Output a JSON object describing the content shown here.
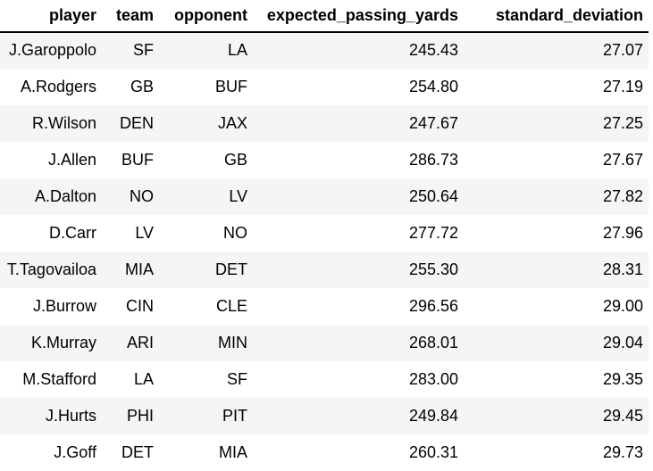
{
  "chart_data": {
    "type": "table",
    "columns": [
      "player",
      "team",
      "opponent",
      "expected_passing_yards",
      "standard_deviation"
    ],
    "rows": [
      [
        "J.Garoppolo",
        "SF",
        "LA",
        "245.43",
        "27.07"
      ],
      [
        "A.Rodgers",
        "GB",
        "BUF",
        "254.80",
        "27.19"
      ],
      [
        "R.Wilson",
        "DEN",
        "JAX",
        "247.67",
        "27.25"
      ],
      [
        "J.Allen",
        "BUF",
        "GB",
        "286.73",
        "27.67"
      ],
      [
        "A.Dalton",
        "NO",
        "LV",
        "250.64",
        "27.82"
      ],
      [
        "D.Carr",
        "LV",
        "NO",
        "277.72",
        "27.96"
      ],
      [
        "T.Tagovailoa",
        "MIA",
        "DET",
        "255.30",
        "28.31"
      ],
      [
        "J.Burrow",
        "CIN",
        "CLE",
        "296.56",
        "29.00"
      ],
      [
        "K.Murray",
        "ARI",
        "MIN",
        "268.01",
        "29.04"
      ],
      [
        "M.Stafford",
        "LA",
        "SF",
        "283.00",
        "29.35"
      ],
      [
        "J.Hurts",
        "PHI",
        "PIT",
        "249.84",
        "29.45"
      ],
      [
        "J.Goff",
        "DET",
        "MIA",
        "260.31",
        "29.73"
      ]
    ],
    "layout": {
      "alignment": "right",
      "grid": "off",
      "row_stripe_odd_color": "#f5f5f5",
      "header_border_color": "#000000",
      "text_color": "#000000",
      "background_color": "#ffffff"
    }
  }
}
